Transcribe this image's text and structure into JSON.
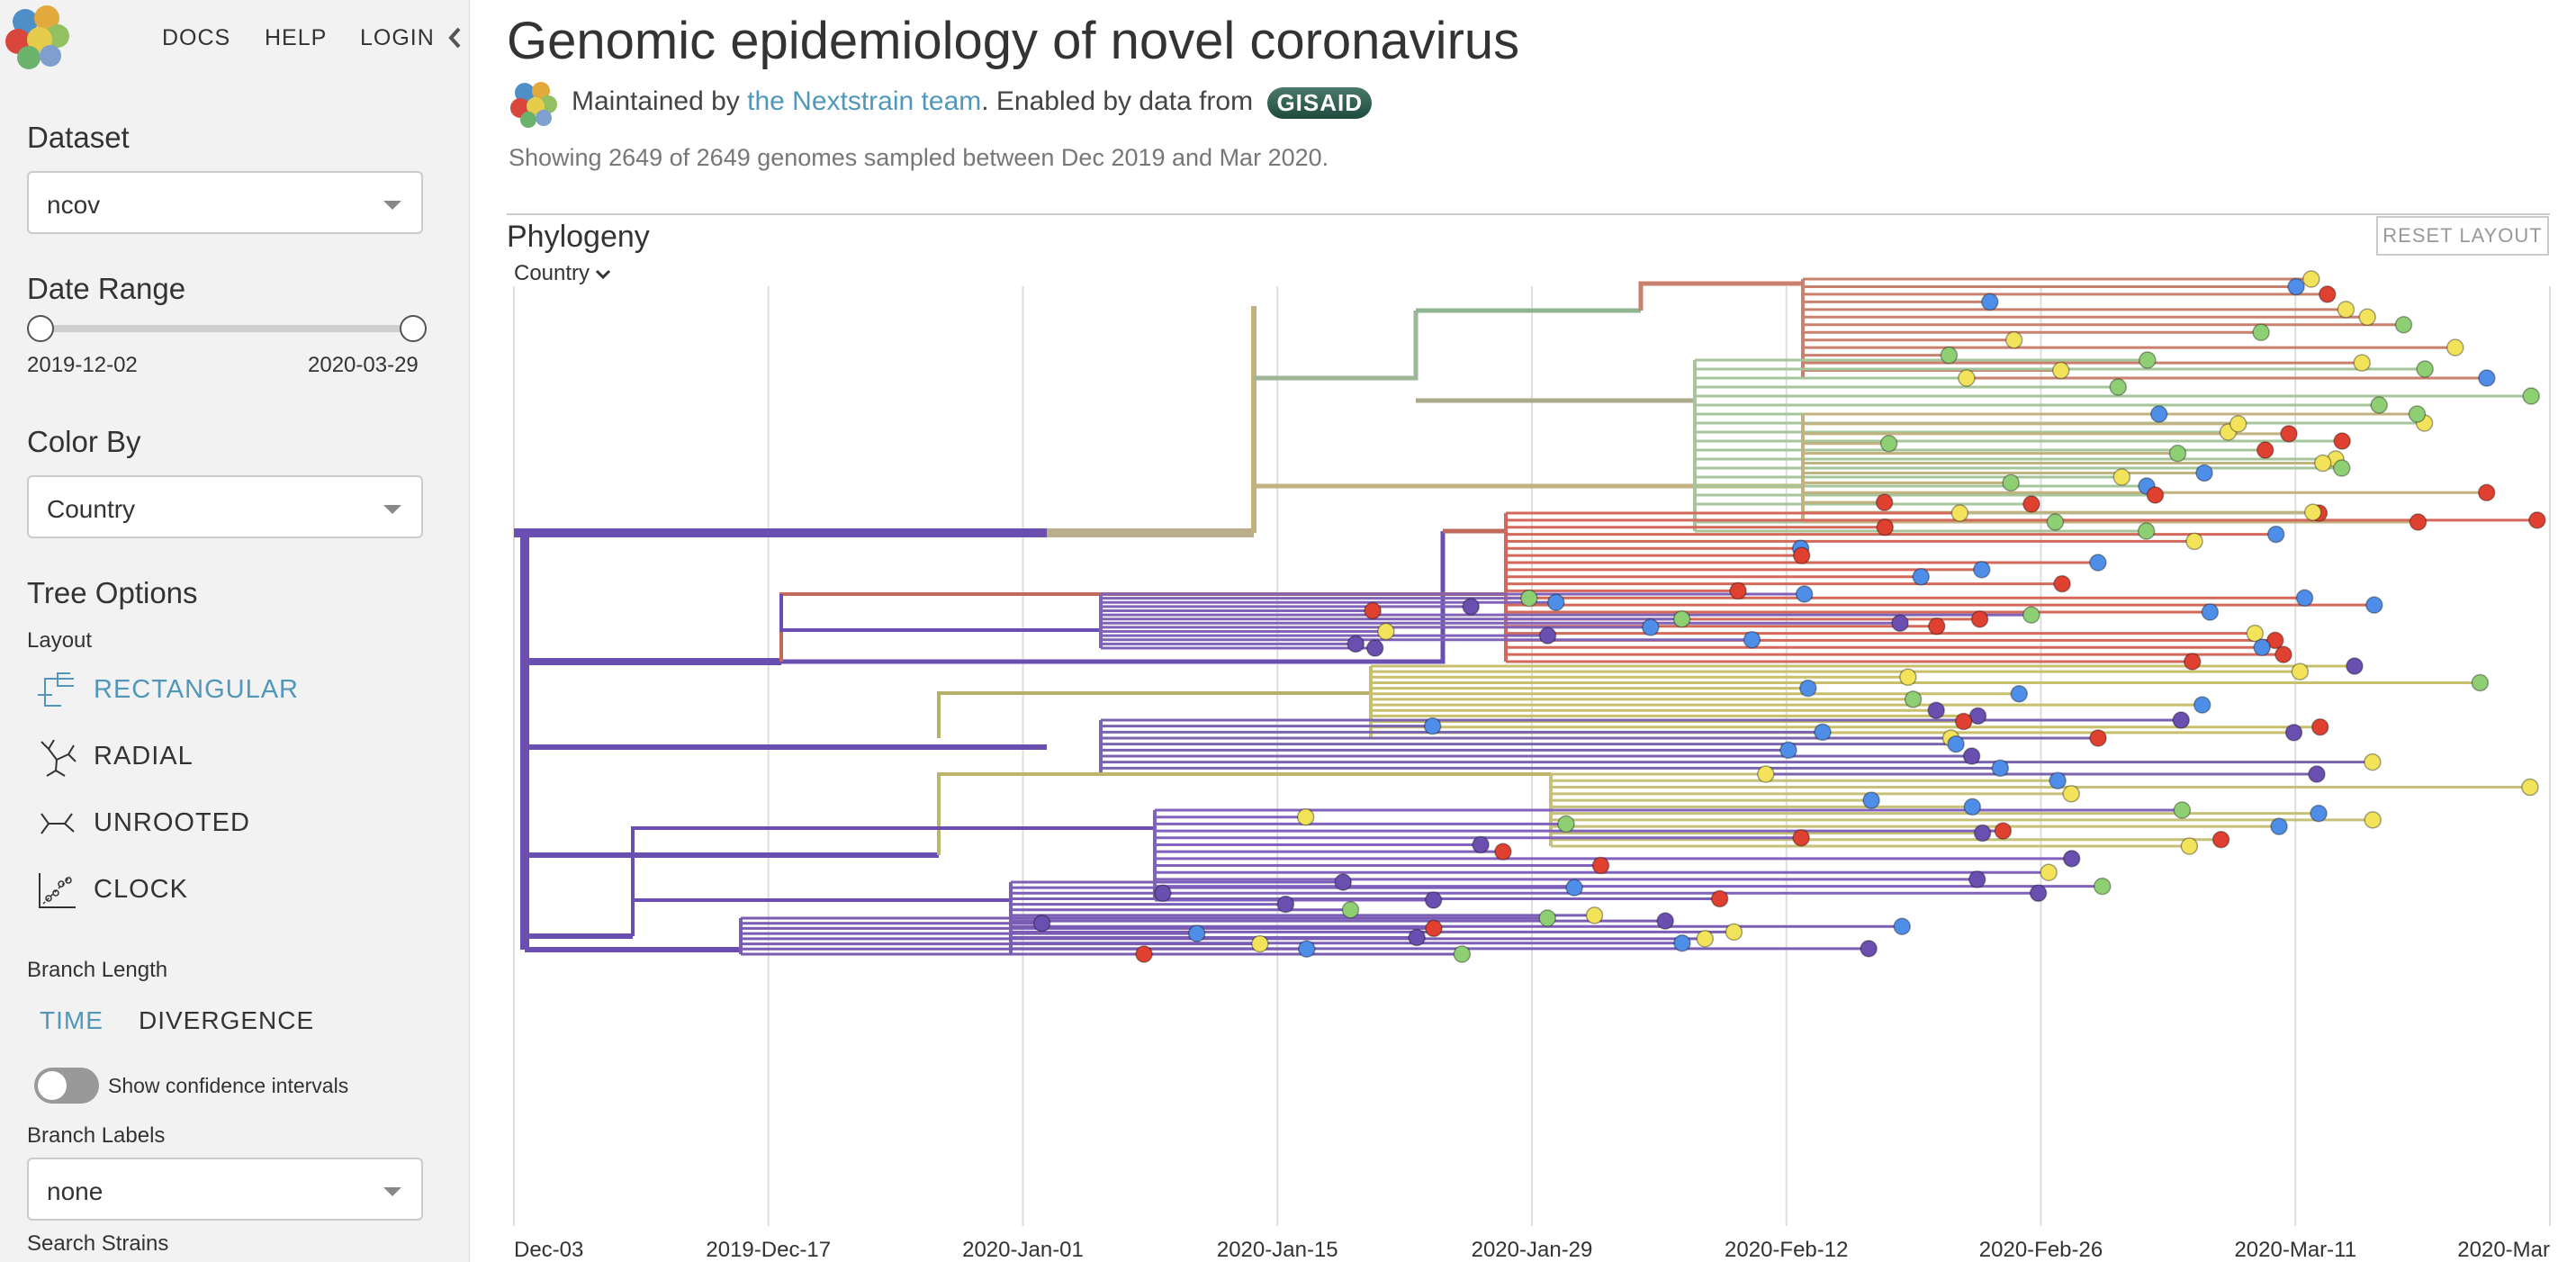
{
  "nav": {
    "docs": "DOCS",
    "help": "HELP",
    "login": "LOGIN"
  },
  "sidebar": {
    "dataset": {
      "title": "Dataset",
      "value": "ncov"
    },
    "date_range": {
      "title": "Date Range",
      "start": "2019-12-02",
      "end": "2020-03-29",
      "start_fraction": 0.0,
      "end_fraction": 1.0
    },
    "color_by": {
      "title": "Color By",
      "value": "Country"
    },
    "tree_options": {
      "title": "Tree Options",
      "layout_label": "Layout",
      "layouts": [
        {
          "label": "RECTANGULAR",
          "icon": "rectangular-tree-icon",
          "active": true
        },
        {
          "label": "RADIAL",
          "icon": "radial-tree-icon",
          "active": false
        },
        {
          "label": "UNROOTED",
          "icon": "unrooted-tree-icon",
          "active": false
        },
        {
          "label": "CLOCK",
          "icon": "clock-tree-icon",
          "active": false
        }
      ],
      "branch_length_label": "Branch Length",
      "branch_length": {
        "time": "TIME",
        "divergence": "DIVERGENCE",
        "selected": "TIME"
      },
      "confidence_label": "Show confidence intervals",
      "confidence_on": false,
      "branch_labels_label": "Branch Labels",
      "branch_labels_value": "none",
      "search_label": "Search Strains"
    }
  },
  "main": {
    "title": "Genomic epidemiology of novel coronavirus",
    "byline": {
      "prefix": "Maintained by ",
      "link": "the Nextstrain team",
      "middle": ". Enabled by data from ",
      "badge": "GISAID"
    },
    "showing": "Showing 2649 of 2649 genomes sampled between Dec 2019 and Mar 2020.",
    "panel_title": "Phylogeny",
    "reset_label": "RESET LAYOUT",
    "legend_label": "Country",
    "x_ticks": [
      "Dec-03",
      "2019-Dec-17",
      "2020-Jan-01",
      "2020-Jan-15",
      "2020-Jan-29",
      "2020-Feb-12",
      "2020-Feb-26",
      "2020-Mar-11",
      "2020-Mar"
    ]
  },
  "colors": {
    "accent": "#5097ba",
    "purple": "#6a4fb0",
    "red": "#e0402f",
    "green": "#8fcf74",
    "yellow": "#f2e35b",
    "blue": "#4f8ee8",
    "olive": "#bdb56a"
  }
}
